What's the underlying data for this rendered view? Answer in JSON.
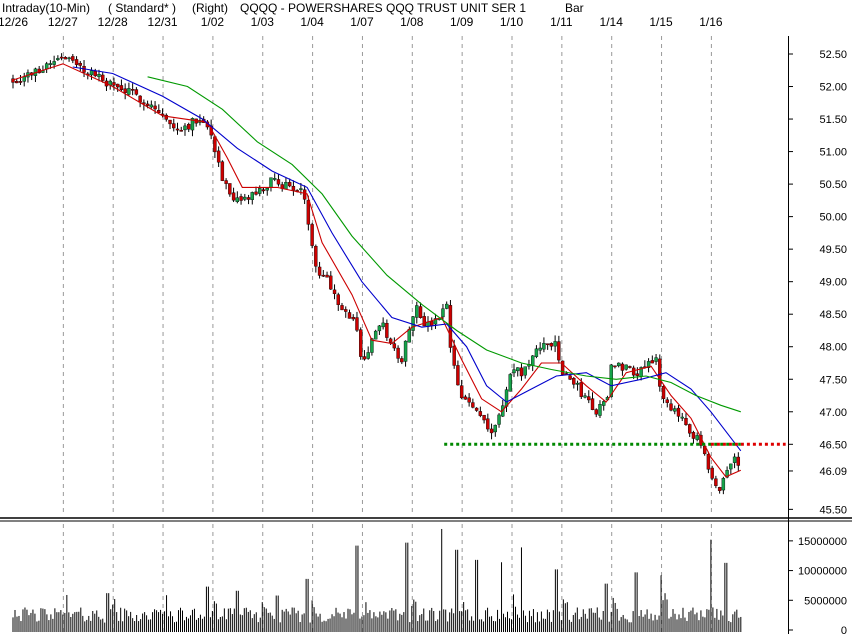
{
  "header": {
    "interval": "Intraday(10-Min)",
    "mode": "( Standard* )",
    "scale": "(Right)",
    "symbol_title": "QQQQ - POWERSHARES QQQ TRUST UNIT SER 1",
    "chart_style": "Bar"
  },
  "colors": {
    "up_bar": "#16a34a",
    "down_bar": "#cc0000",
    "ma_short": "#cc0000",
    "ma_medium": "#0000cc",
    "ma_long": "#009900",
    "support_line": "#008800",
    "resistance_line": "#dd0000",
    "volume_bar": "#000000",
    "gridline": "#999999"
  },
  "chart_data": [
    {
      "type": "candlestick",
      "title": "QQQQ - POWERSHARES QQQ TRUST UNIT SER 1",
      "xlabel": "",
      "ylabel": "",
      "categories": [
        "12/26",
        "12/27",
        "12/28",
        "12/31",
        "1/02",
        "1/03",
        "1/04",
        "1/07",
        "1/08",
        "1/09",
        "1/10",
        "1/11",
        "1/14",
        "1/15",
        "1/16"
      ],
      "x_ticks": [
        "12/26",
        "12/27",
        "12/28",
        "12/31",
        "1/02",
        "1/03",
        "1/04",
        "1/07",
        "1/08",
        "1/09",
        "1/10",
        "1/11",
        "1/14",
        "1/15",
        "1/16"
      ],
      "y_ticks": [
        "52.50",
        "52.00",
        "51.50",
        "51.00",
        "50.50",
        "50.00",
        "49.50",
        "49.00",
        "48.50",
        "48.00",
        "47.50",
        "47.00",
        "46.50",
        "46.09",
        "45.50"
      ],
      "ylim": [
        45.35,
        52.75
      ],
      "y_axis_side": "right",
      "grid": "vertical dashed at each day",
      "close_path": [
        [
          0,
          52.1
        ],
        [
          0.4,
          52.2
        ],
        [
          0.8,
          52.4
        ],
        [
          1.0,
          52.5
        ],
        [
          1.3,
          52.3
        ],
        [
          1.6,
          52.2
        ],
        [
          1.9,
          52.05
        ],
        [
          2.2,
          51.95
        ],
        [
          2.5,
          51.85
        ],
        [
          2.8,
          51.7
        ],
        [
          3.0,
          51.55
        ],
        [
          3.2,
          51.35
        ],
        [
          3.5,
          51.4
        ],
        [
          3.8,
          51.55
        ],
        [
          4.0,
          51.2
        ],
        [
          4.2,
          50.6
        ],
        [
          4.4,
          50.2
        ],
        [
          4.6,
          50.25
        ],
        [
          5.0,
          50.4
        ],
        [
          5.2,
          50.55
        ],
        [
          5.4,
          50.5
        ],
        [
          5.6,
          50.45
        ],
        [
          5.8,
          50.4
        ],
        [
          6.0,
          49.6
        ],
        [
          6.1,
          49.2
        ],
        [
          6.3,
          49.05
        ],
        [
          6.6,
          48.6
        ],
        [
          6.9,
          48.3
        ],
        [
          7.0,
          47.7
        ],
        [
          7.2,
          48.1
        ],
        [
          7.4,
          48.35
        ],
        [
          7.6,
          48.0
        ],
        [
          7.8,
          47.8
        ],
        [
          8.0,
          48.5
        ],
        [
          8.1,
          48.6
        ],
        [
          8.3,
          48.3
        ],
        [
          8.5,
          48.4
        ],
        [
          8.7,
          48.6
        ],
        [
          8.8,
          47.8
        ],
        [
          9.0,
          47.2
        ],
        [
          9.2,
          47.1
        ],
        [
          9.4,
          46.95
        ],
        [
          9.6,
          46.7
        ],
        [
          9.8,
          47.0
        ],
        [
          10.0,
          47.65
        ],
        [
          10.2,
          47.6
        ],
        [
          10.5,
          47.9
        ],
        [
          10.7,
          48.1
        ],
        [
          10.9,
          48.0
        ],
        [
          11.0,
          47.6
        ],
        [
          11.2,
          47.5
        ],
        [
          11.5,
          47.2
        ],
        [
          11.7,
          47.0
        ],
        [
          11.9,
          47.15
        ],
        [
          12.0,
          47.7
        ],
        [
          12.3,
          47.7
        ],
        [
          12.5,
          47.6
        ],
        [
          12.7,
          47.75
        ],
        [
          12.9,
          47.85
        ],
        [
          13.0,
          47.2
        ],
        [
          13.2,
          47.0
        ],
        [
          13.4,
          46.95
        ],
        [
          13.6,
          46.7
        ],
        [
          13.8,
          46.5
        ],
        [
          14.0,
          45.95
        ],
        [
          14.15,
          45.75
        ],
        [
          14.3,
          46.1
        ],
        [
          14.5,
          46.3
        ],
        [
          14.6,
          46.1
        ]
      ],
      "series": [
        {
          "name": "",
          "role": "short moving average",
          "color": "#cc0000",
          "values": [
            [
              0,
              52.1
            ],
            [
              1.0,
              52.35
            ],
            [
              2.0,
              52.0
            ],
            [
              3.0,
              51.55
            ],
            [
              3.9,
              51.45
            ],
            [
              4.3,
              50.9
            ],
            [
              4.6,
              50.45
            ],
            [
              5.3,
              50.45
            ],
            [
              5.9,
              50.35
            ],
            [
              6.2,
              49.6
            ],
            [
              6.8,
              48.8
            ],
            [
              7.2,
              48.1
            ],
            [
              7.6,
              48.05
            ],
            [
              8.0,
              48.3
            ],
            [
              8.6,
              48.45
            ],
            [
              9.0,
              47.8
            ],
            [
              9.4,
              47.2
            ],
            [
              9.8,
              47.0
            ],
            [
              10.2,
              47.35
            ],
            [
              10.6,
              47.75
            ],
            [
              11.0,
              47.75
            ],
            [
              11.5,
              47.4
            ],
            [
              11.9,
              47.15
            ],
            [
              12.3,
              47.6
            ],
            [
              12.8,
              47.7
            ],
            [
              13.2,
              47.25
            ],
            [
              13.6,
              46.9
            ],
            [
              14.0,
              46.3
            ],
            [
              14.3,
              46.0
            ],
            [
              14.6,
              46.1
            ]
          ]
        },
        {
          "name": "",
          "role": "medium moving average",
          "color": "#0000cc",
          "values": [
            [
              1.2,
              52.3
            ],
            [
              2.0,
              52.2
            ],
            [
              3.0,
              51.85
            ],
            [
              3.8,
              51.5
            ],
            [
              4.5,
              51.05
            ],
            [
              5.2,
              50.7
            ],
            [
              5.9,
              50.45
            ],
            [
              6.4,
              49.75
            ],
            [
              7.0,
              49.0
            ],
            [
              7.6,
              48.45
            ],
            [
              8.2,
              48.3
            ],
            [
              8.7,
              48.35
            ],
            [
              9.1,
              48.0
            ],
            [
              9.5,
              47.4
            ],
            [
              9.9,
              47.15
            ],
            [
              10.4,
              47.35
            ],
            [
              10.9,
              47.55
            ],
            [
              11.5,
              47.6
            ],
            [
              12.0,
              47.4
            ],
            [
              12.6,
              47.5
            ],
            [
              13.1,
              47.6
            ],
            [
              13.6,
              47.35
            ],
            [
              14.0,
              47.0
            ],
            [
              14.4,
              46.6
            ],
            [
              14.6,
              46.4
            ]
          ]
        },
        {
          "name": "",
          "role": "long moving average",
          "color": "#009900",
          "values": [
            [
              2.7,
              52.15
            ],
            [
              3.5,
              52.0
            ],
            [
              4.2,
              51.65
            ],
            [
              4.9,
              51.15
            ],
            [
              5.6,
              50.8
            ],
            [
              6.2,
              50.35
            ],
            [
              6.8,
              49.7
            ],
            [
              7.5,
              49.1
            ],
            [
              8.2,
              48.65
            ],
            [
              8.9,
              48.25
            ],
            [
              9.5,
              47.95
            ],
            [
              10.2,
              47.75
            ],
            [
              10.8,
              47.65
            ],
            [
              11.5,
              47.55
            ],
            [
              12.1,
              47.5
            ],
            [
              12.7,
              47.55
            ],
            [
              13.2,
              47.45
            ],
            [
              13.7,
              47.25
            ],
            [
              14.2,
              47.1
            ],
            [
              14.6,
              47.0
            ]
          ]
        }
      ],
      "lines": [
        {
          "role": "support",
          "y": 46.5,
          "x_start": 8.65,
          "x_end": 14.6,
          "color": "#008800",
          "style": "dotted"
        },
        {
          "role": "resistance",
          "y": 46.5,
          "x_start": 14.0,
          "x_end": 15.5,
          "color": "#dd0000",
          "style": "dotted"
        }
      ]
    },
    {
      "type": "bar",
      "title": "",
      "xlabel": "",
      "ylabel": "",
      "y_ticks": [
        "15000000",
        "10000000",
        "5000000",
        "0"
      ],
      "ylim": [
        0,
        17500000
      ],
      "y_axis_side": "right",
      "spikes": [
        [
          0.9,
          3000000
        ],
        [
          1.9,
          6200000
        ],
        [
          3.9,
          7300000
        ],
        [
          4.5,
          6600000
        ],
        [
          5.3,
          5800000
        ],
        [
          5.9,
          8600000
        ],
        [
          6.9,
          14200000
        ],
        [
          7.9,
          14700000
        ],
        [
          8.6,
          17000000
        ],
        [
          8.9,
          13500000
        ],
        [
          9.3,
          11800000
        ],
        [
          9.8,
          11400000
        ],
        [
          10.2,
          13900000
        ],
        [
          10.9,
          10200000
        ],
        [
          11.9,
          7800000
        ],
        [
          12.5,
          9700000
        ],
        [
          13.0,
          9200000
        ],
        [
          14.0,
          15200000
        ],
        [
          14.3,
          11300000
        ]
      ]
    }
  ]
}
